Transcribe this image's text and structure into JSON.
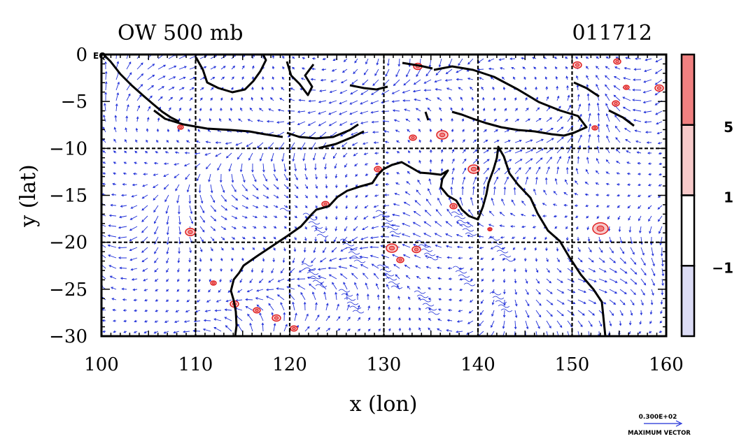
{
  "title_left": "OW 500 mb",
  "title_right": "011712",
  "corner_label": "EQ",
  "x_axis": {
    "label": "x (lon)",
    "ticks": [
      "100",
      "110",
      "120",
      "130",
      "140",
      "150",
      "160"
    ],
    "values": [
      100,
      110,
      120,
      130,
      140,
      150,
      160
    ],
    "range": [
      100,
      160
    ]
  },
  "y_axis": {
    "label": "y (lat)",
    "ticks": [
      "0",
      "−5",
      "−10",
      "−15",
      "−20",
      "−25",
      "−30"
    ],
    "values": [
      0,
      -5,
      -10,
      -15,
      -20,
      -25,
      -30
    ],
    "range": [
      -30,
      0
    ]
  },
  "grid_lines": {
    "lon": [
      110,
      120,
      130,
      140,
      150
    ],
    "lat": [
      -10,
      -20
    ]
  },
  "colorbar": {
    "labels": [
      "5",
      "1",
      "−1"
    ],
    "levels": [
      5,
      1,
      -1
    ],
    "colors": [
      "#f08080",
      "#f7caca",
      "#ffffff",
      "#dcdcf5"
    ]
  },
  "vector_legend": {
    "value": "0.300E+02",
    "caption": "MAXIMUM VECTOR"
  },
  "colors": {
    "vectors": "#1f2fd8",
    "contours": "#e02020",
    "coast": "#000000",
    "grid": "#000000"
  }
}
